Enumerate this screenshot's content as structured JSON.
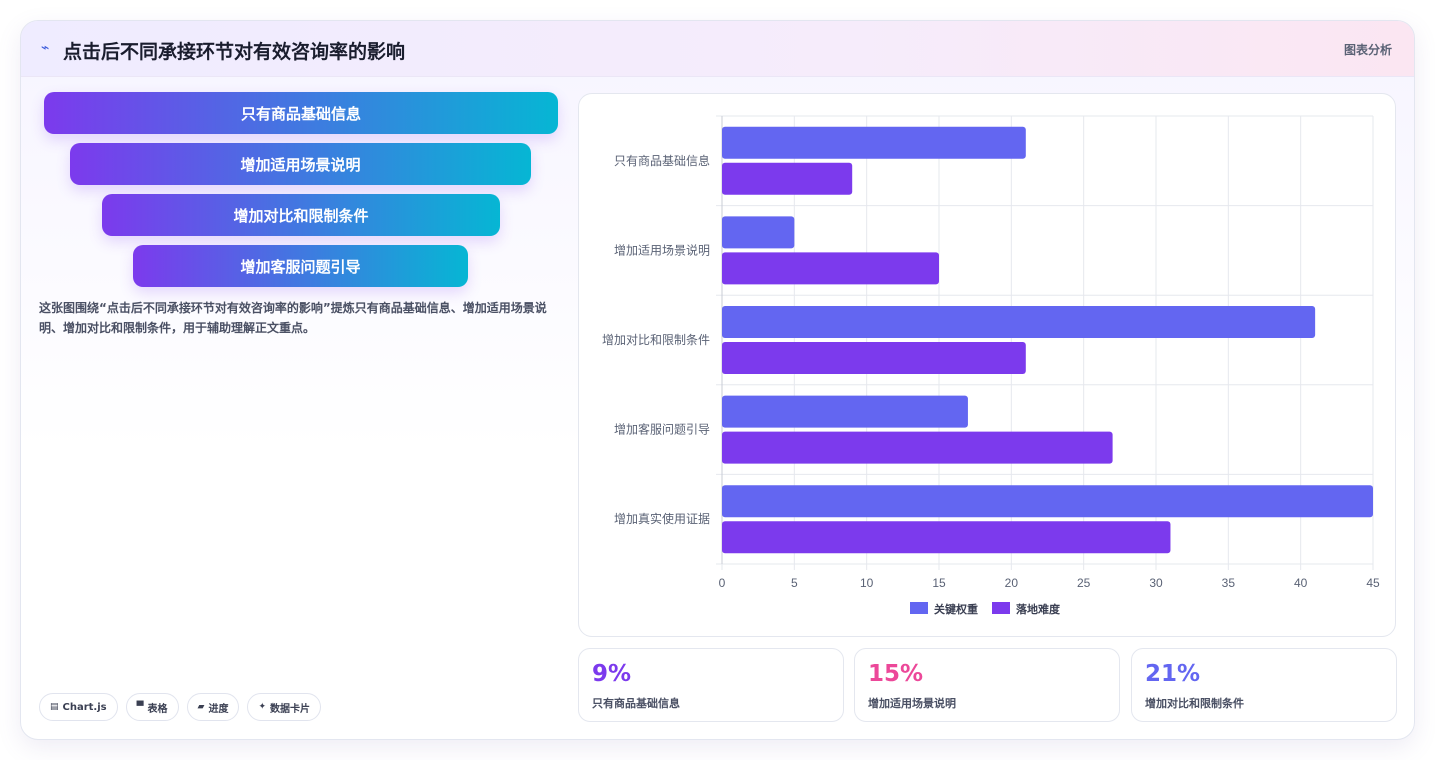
{
  "header": {
    "icon": "line-chart-icon",
    "title": "点击后不同承接环节对有效咨询率的影响",
    "right_label": "图表分析"
  },
  "funnel": [
    {
      "label": "只有商品基础信息"
    },
    {
      "label": "增加适用场景说明"
    },
    {
      "label": "增加对比和限制条件"
    },
    {
      "label": "增加客服问题引导"
    }
  ],
  "description": "这张图围绕“点击后不同承接环节对有效咨询率的影响”提炼只有商品基础信息、增加适用场景说明、增加对比和限制条件，用于辅助理解正文重点。",
  "chips": [
    {
      "icon": "chart-icon",
      "glyph": "▤",
      "label": "Chart.js"
    },
    {
      "icon": "table-icon",
      "glyph": "▀",
      "label": "表格"
    },
    {
      "icon": "progress-icon",
      "glyph": "▰",
      "label": "进度"
    },
    {
      "icon": "sparkle-icon",
      "glyph": "✦",
      "label": "数据卡片"
    }
  ],
  "stats": [
    {
      "value": "9%",
      "label": "只有商品基础信息",
      "color": "#7c3aed"
    },
    {
      "value": "15%",
      "label": "增加适用场景说明",
      "color": "#ec4899"
    },
    {
      "value": "21%",
      "label": "增加对比和限制条件",
      "color": "#6366f1"
    }
  ],
  "chart_data": {
    "type": "bar",
    "orientation": "horizontal",
    "categories": [
      "只有商品基础信息",
      "增加适用场景说明",
      "增加对比和限制条件",
      "增加客服问题引导",
      "增加真实使用证据"
    ],
    "series": [
      {
        "name": "关键权重",
        "values": [
          21,
          5,
          41,
          17,
          45
        ],
        "color": "#6366f1"
      },
      {
        "name": "落地难度",
        "values": [
          9,
          15,
          21,
          27,
          31
        ],
        "color": "#7c3aed"
      }
    ],
    "xlim": [
      0,
      45
    ],
    "xticks": [
      "0",
      "5",
      "10",
      "15",
      "20",
      "25",
      "30",
      "35",
      "40",
      "45"
    ],
    "grid": true,
    "legend": "bottom"
  }
}
